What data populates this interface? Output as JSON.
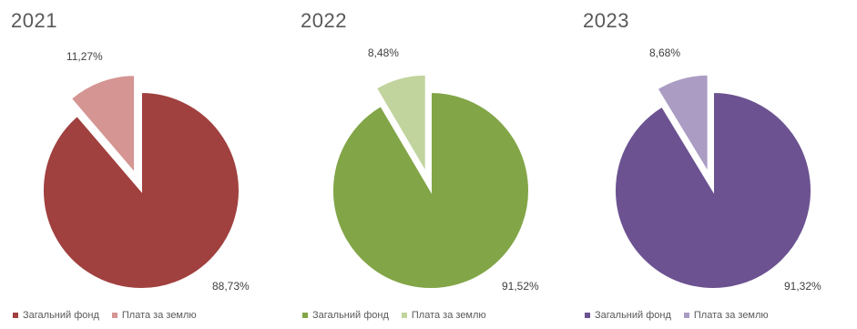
{
  "chart_data": [
    {
      "type": "pie",
      "title": "2021",
      "categories": [
        "Загальний фонд",
        "Плата за землю"
      ],
      "values": [
        88.73,
        11.27
      ],
      "labels": [
        "88,73%",
        "11,27%"
      ],
      "colors": [
        "#a0403f",
        "#d49593"
      ],
      "legend": "bottom",
      "legend_labels": [
        "Загальний фонд",
        "Плата за землю"
      ]
    },
    {
      "type": "pie",
      "title": "2022",
      "categories": [
        "Загальний фонд",
        "Плата за землю"
      ],
      "values": [
        91.52,
        8.48
      ],
      "labels": [
        "91,52%",
        "8,48%"
      ],
      "colors": [
        "#82a547",
        "#c1d49d"
      ],
      "legend": "bottom",
      "legend_labels": [
        "Загальний фонд",
        "Плата за землю"
      ]
    },
    {
      "type": "pie",
      "title": "2023",
      "categories": [
        "Загальний фонд",
        "Плата за землю"
      ],
      "values": [
        91.32,
        8.68
      ],
      "labels": [
        "91,32%",
        "8,68%"
      ],
      "colors": [
        "#6c5291",
        "#ab9cc4"
      ],
      "legend": "bottom",
      "legend_labels": [
        "Загальний фонд",
        "Плата за землю"
      ]
    }
  ]
}
